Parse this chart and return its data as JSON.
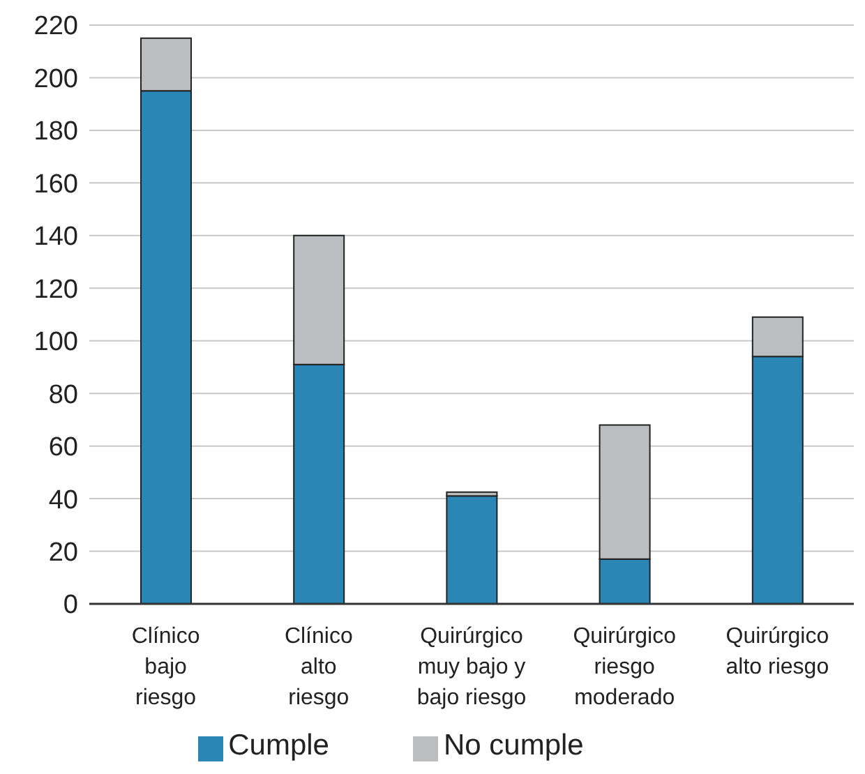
{
  "chart_data": {
    "type": "bar",
    "stacked": true,
    "categories": [
      "Clínico\nbajo\nriesgo",
      "Clínico\nalto\nriesgo",
      "Quirúrgico\nmuy bajo y\nbajo riesgo",
      "Quirúrgico\nriesgo\nmoderado",
      "Quirúrgico\nalto riesgo"
    ],
    "series": [
      {
        "name": "Cumple",
        "color": "#2a86b4",
        "values": [
          195,
          91,
          41,
          17,
          94
        ]
      },
      {
        "name": "No cumple",
        "color": "#bcbdc1",
        "values": [
          20,
          49,
          1.5,
          51,
          15
        ]
      }
    ],
    "ylim": [
      0,
      220
    ],
    "yticks": [
      0,
      20,
      40,
      60,
      80,
      100,
      120,
      140,
      160,
      180,
      200,
      220
    ],
    "grid": "y",
    "legend": "bottom"
  }
}
